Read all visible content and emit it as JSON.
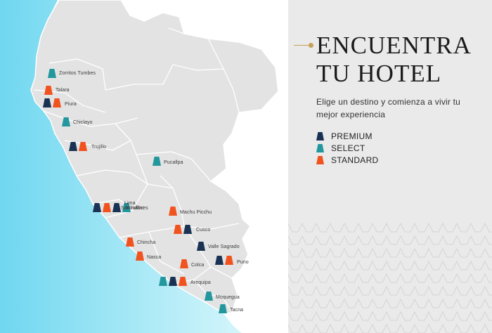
{
  "title": {
    "line1": "ENCUENTRA",
    "line2": "TU HOTEL"
  },
  "subtitle": "Elige un destino y comienza a vivir tu mejor experiencia",
  "legend": [
    {
      "label": "PREMIUM",
      "type": "premium"
    },
    {
      "label": "SELECT",
      "type": "select"
    },
    {
      "label": "STANDARD",
      "type": "standard"
    }
  ],
  "colors": {
    "premium": "#1a3354",
    "select": "#23979e",
    "standard": "#f1531f",
    "accent": "#c6a05a",
    "ocean": "#8fe0f2",
    "land": "#e3e3e3",
    "panel": "#eaeaea"
  },
  "destinations": [
    {
      "id": "zorritos",
      "name": "Zorritos Tumbes",
      "hotels": [
        "select"
      ]
    },
    {
      "id": "talara",
      "name": "Talara",
      "hotels": [
        "standard"
      ]
    },
    {
      "id": "piura",
      "name": "Piura",
      "hotels": [
        "premium",
        "standard"
      ]
    },
    {
      "id": "chiclayo",
      "name": "Chiclayo",
      "hotels": [
        "select"
      ]
    },
    {
      "id": "trujillo",
      "name": "Trujillo",
      "hotels": [
        "premium",
        "standard"
      ]
    },
    {
      "id": "pucallpa",
      "name": "Pucallpa",
      "hotels": [
        "select"
      ]
    },
    {
      "id": "lima",
      "name": "Lima",
      "hotels": [
        "premium",
        "standard",
        "premium",
        "select"
      ]
    },
    {
      "id": "san-isidro",
      "name": "San Isidro",
      "hotels": []
    },
    {
      "id": "miraflores",
      "name": "Miraflores",
      "hotels": []
    },
    {
      "id": "machu-picchu",
      "name": "Machu Picchu",
      "hotels": [
        "standard"
      ]
    },
    {
      "id": "cusco",
      "name": "Cusco",
      "hotels": [
        "standard",
        "premium"
      ]
    },
    {
      "id": "chincha",
      "name": "Chincha",
      "hotels": [
        "standard"
      ]
    },
    {
      "id": "valle-sagrado",
      "name": "Valle Sagrado",
      "hotels": [
        "premium"
      ]
    },
    {
      "id": "nasca",
      "name": "Nasca",
      "hotels": [
        "standard"
      ]
    },
    {
      "id": "colca",
      "name": "Colca",
      "hotels": [
        "standard"
      ]
    },
    {
      "id": "puno",
      "name": "Puno",
      "hotels": [
        "premium",
        "standard"
      ]
    },
    {
      "id": "arequipa",
      "name": "Arequipa",
      "hotels": [
        "select",
        "premium",
        "standard"
      ]
    },
    {
      "id": "moquegua",
      "name": "Moquegua",
      "hotels": [
        "select"
      ]
    },
    {
      "id": "tacna",
      "name": "Tacna",
      "hotels": [
        "select"
      ]
    }
  ]
}
